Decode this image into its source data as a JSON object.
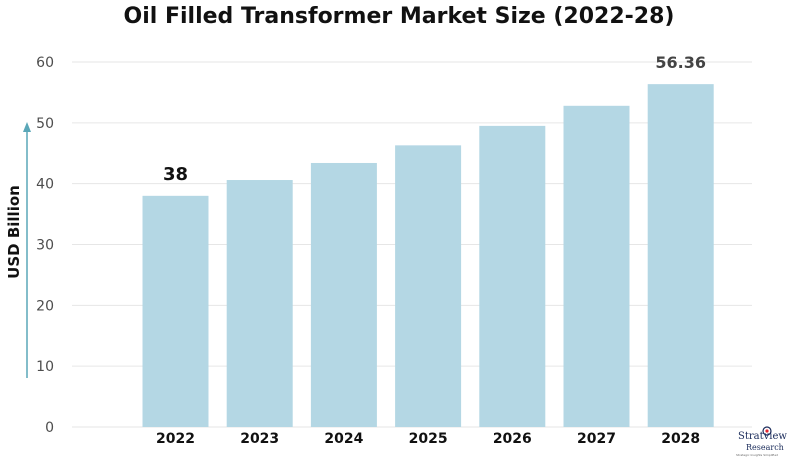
{
  "chart_data": {
    "type": "bar",
    "title": "Oil Filled Transformer Market Size (2022-28)",
    "xlabel": "",
    "ylabel": "USD Billion",
    "categories": [
      "2022",
      "2023",
      "2024",
      "2025",
      "2026",
      "2027",
      "2028"
    ],
    "values": [
      38,
      40.6,
      43.4,
      46.3,
      49.5,
      52.8,
      56.36
    ],
    "data_labels": [
      {
        "category": "2022",
        "text": "38"
      },
      {
        "category": "2028",
        "text": "56.36"
      }
    ],
    "ylim": [
      0,
      60
    ],
    "yticks": [
      0,
      10,
      20,
      30,
      40,
      50,
      60
    ],
    "grid": true,
    "legend": "none",
    "colors": {
      "bar": "#b4d7e4",
      "grid": "#e6e6e6",
      "axis_arrow": "#5aa7b8",
      "tick_text": "#4d4d4d",
      "category_text": "#111111"
    }
  },
  "logo": {
    "name": "Stratview",
    "sub": "Research",
    "tagline": "Strategic Insights Simplified"
  }
}
